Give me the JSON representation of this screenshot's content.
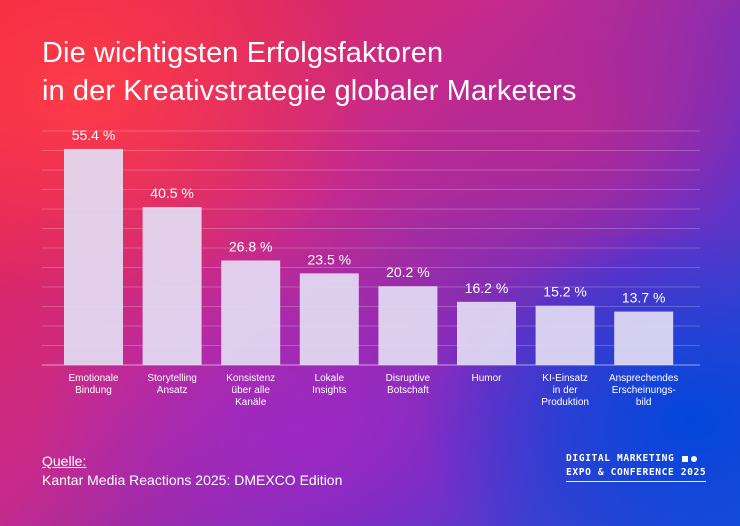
{
  "title_lines": [
    "Die wichtigsten Erfolgsfaktoren",
    "in der Kreativstrategie globaler Marketers"
  ],
  "source": {
    "label": "Quelle:",
    "text": "Kantar Media Reactions 2025: DMEXCO Edition"
  },
  "logo": {
    "line1": "DIGITAL MARKETING",
    "line2": "EXPO & CONFERENCE 2025"
  },
  "colors": {
    "bar": "#e3dcf3",
    "grid": "#ffffff",
    "text": "#ffffff"
  },
  "chart_data": {
    "type": "bar",
    "categories": [
      [
        "Emotionale",
        "Bindung"
      ],
      [
        "Storytelling",
        "Ansatz"
      ],
      [
        "Konsistenz",
        "über alle",
        "Kanäle"
      ],
      [
        "Lokale",
        "Insights"
      ],
      [
        "Disruptive",
        "Botschaft"
      ],
      [
        "Humor"
      ],
      [
        "KI-Einsatz",
        "in der",
        "Produktion"
      ],
      [
        "Ansprechendes",
        "Erscheinungs-",
        "bild"
      ]
    ],
    "values": [
      55.4,
      40.5,
      26.8,
      23.5,
      20.2,
      16.2,
      15.2,
      13.7
    ],
    "value_labels": [
      "55.4 %",
      "40.5 %",
      "26.8 %",
      "23.5 %",
      "20.2 %",
      "16.2 %",
      "15.2 %",
      "13.7 %"
    ],
    "ylim": [
      0,
      60
    ],
    "grid": true
  }
}
